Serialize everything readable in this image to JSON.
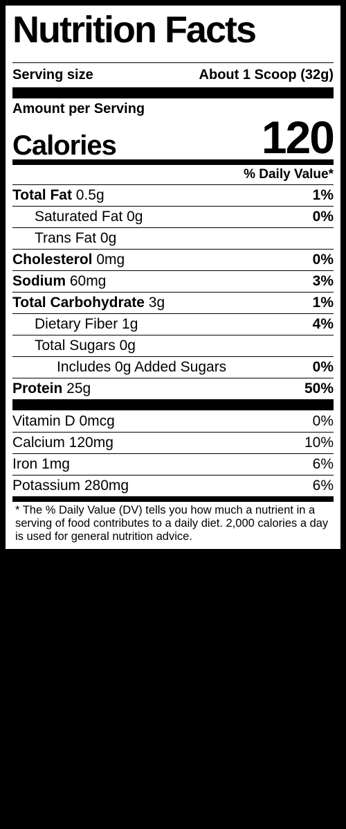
{
  "colors": {
    "bg": "#000000",
    "panel": "#ffffff",
    "rule": "#000000",
    "text": "#000000"
  },
  "title": "Nutrition Facts",
  "serving": {
    "label": "Serving size",
    "value": "About 1 Scoop (32g)"
  },
  "calories": {
    "amount_label": "Amount per Serving",
    "label": "Calories",
    "value": "120"
  },
  "dv_header": "% Daily Value*",
  "nutrients": [
    {
      "bold": "Total Fat",
      "rest": " 0.5g",
      "dv": "1%",
      "indent": 0
    },
    {
      "bold": "",
      "rest": "Saturated Fat 0g",
      "dv": "0%",
      "indent": 1
    },
    {
      "bold": "",
      "rest": "Trans Fat 0g",
      "dv": "",
      "indent": 1
    },
    {
      "bold": "Cholesterol",
      "rest": " 0mg",
      "dv": "0%",
      "indent": 0
    },
    {
      "bold": "Sodium",
      "rest": " 60mg",
      "dv": "3%",
      "indent": 0
    },
    {
      "bold": "Total Carbohydrate",
      "rest": " 3g",
      "dv": "1%",
      "indent": 0
    },
    {
      "bold": "",
      "rest": "Dietary Fiber 1g",
      "dv": "4%",
      "indent": 1
    },
    {
      "bold": "",
      "rest": "Total Sugars 0g",
      "dv": "",
      "indent": 1
    },
    {
      "bold": "",
      "rest": "Includes 0g Added Sugars",
      "dv": "0%",
      "indent": 2
    },
    {
      "bold": "Protein",
      "rest": " 25g",
      "dv": "50%",
      "indent": 0
    }
  ],
  "vitamins": [
    {
      "name": "Vitamin D 0mcg",
      "dv": "0%"
    },
    {
      "name": "Calcium 120mg",
      "dv": "10%"
    },
    {
      "name": "Iron 1mg",
      "dv": "6%"
    },
    {
      "name": "Potassium 280mg",
      "dv": "6%"
    }
  ],
  "footnote": "The % Daily Value (DV) tells you how much a nutrient in a serving of food contributes to a daily diet. 2,000 calories a  day is used for general nutrition advice.",
  "footnote_star": "*",
  "typography": {
    "title_size": 54,
    "row_size": 21,
    "cal_size": 66
  }
}
